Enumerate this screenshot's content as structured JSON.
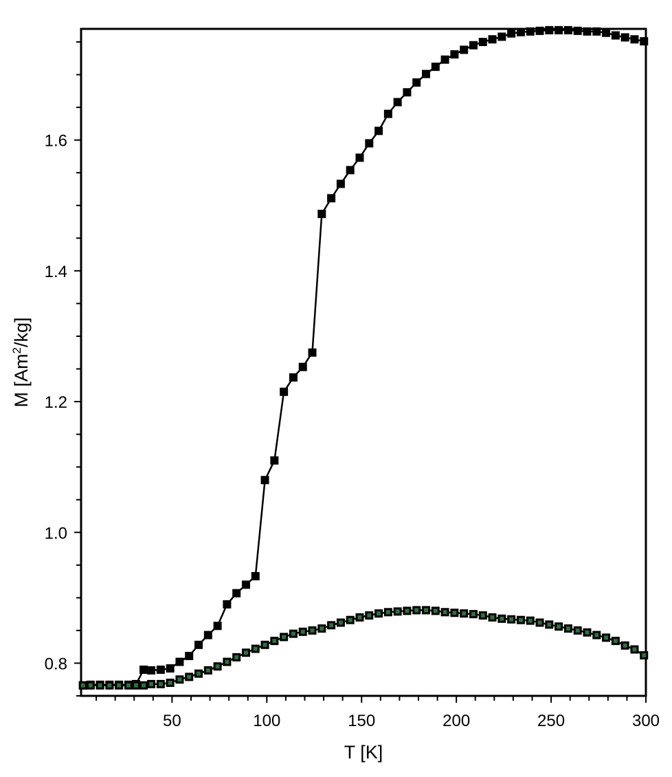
{
  "chart_data": {
    "type": "line",
    "xlabel": "T [K]",
    "ylabel_main": "M [Am",
    "ylabel_sup": "2",
    "ylabel_rest": "/kg]",
    "xlim": [
      2,
      300
    ],
    "ylim": [
      0.75,
      1.77
    ],
    "xticks": [
      "50",
      "100",
      "150",
      "200",
      "250",
      "300"
    ],
    "yticks": [
      "0.8",
      "1.0",
      "1.2",
      "1.4",
      "1.6"
    ],
    "grid": false,
    "series": [
      {
        "color": "#000000",
        "fill": "#000000",
        "marker": "filled-square",
        "x": [
          3,
          7,
          12,
          17,
          22,
          27,
          31,
          35,
          39,
          44,
          49,
          54,
          59,
          64,
          69,
          74,
          79,
          84,
          89,
          94,
          99,
          104,
          109,
          114,
          119,
          124,
          129,
          134,
          139,
          144,
          149,
          154,
          159,
          164,
          169,
          174,
          179,
          184,
          189,
          194,
          199,
          204,
          209,
          214,
          219,
          224,
          229,
          234,
          239,
          244,
          249,
          254,
          259,
          264,
          269,
          274,
          279,
          284,
          289,
          294,
          299
        ],
        "y": [
          0.766,
          0.767,
          0.767,
          0.767,
          0.767,
          0.767,
          0.768,
          0.79,
          0.789,
          0.79,
          0.792,
          0.802,
          0.811,
          0.828,
          0.843,
          0.857,
          0.89,
          0.907,
          0.92,
          0.933,
          1.08,
          1.11,
          1.215,
          1.237,
          1.253,
          1.275,
          1.487,
          1.511,
          1.533,
          1.554,
          1.573,
          1.595,
          1.614,
          1.64,
          1.658,
          1.673,
          1.688,
          1.701,
          1.712,
          1.723,
          1.731,
          1.738,
          1.745,
          1.75,
          1.754,
          1.758,
          1.763,
          1.765,
          1.766,
          1.767,
          1.768,
          1.768,
          1.768,
          1.767,
          1.766,
          1.766,
          1.764,
          1.76,
          1.757,
          1.754,
          1.751
        ]
      },
      {
        "color": "#000000",
        "fill": "#2e6e3e",
        "marker": "hollow-square",
        "x": [
          3,
          7,
          12,
          17,
          22,
          27,
          31,
          35,
          39,
          44,
          49,
          54,
          59,
          64,
          69,
          74,
          79,
          84,
          89,
          94,
          99,
          104,
          109,
          114,
          119,
          124,
          129,
          134,
          139,
          144,
          149,
          154,
          159,
          164,
          169,
          174,
          179,
          184,
          189,
          194,
          199,
          204,
          209,
          214,
          219,
          224,
          229,
          234,
          239,
          244,
          249,
          254,
          259,
          264,
          269,
          274,
          279,
          284,
          289,
          294,
          299
        ],
        "y": [
          0.766,
          0.766,
          0.766,
          0.766,
          0.766,
          0.766,
          0.766,
          0.766,
          0.768,
          0.768,
          0.77,
          0.775,
          0.779,
          0.784,
          0.789,
          0.795,
          0.802,
          0.809,
          0.816,
          0.822,
          0.828,
          0.834,
          0.84,
          0.845,
          0.848,
          0.85,
          0.853,
          0.858,
          0.862,
          0.866,
          0.87,
          0.873,
          0.876,
          0.878,
          0.879,
          0.88,
          0.881,
          0.881,
          0.88,
          0.878,
          0.877,
          0.876,
          0.875,
          0.873,
          0.87,
          0.868,
          0.867,
          0.866,
          0.865,
          0.862,
          0.859,
          0.856,
          0.853,
          0.85,
          0.847,
          0.843,
          0.839,
          0.834,
          0.827,
          0.821,
          0.812
        ]
      }
    ]
  }
}
